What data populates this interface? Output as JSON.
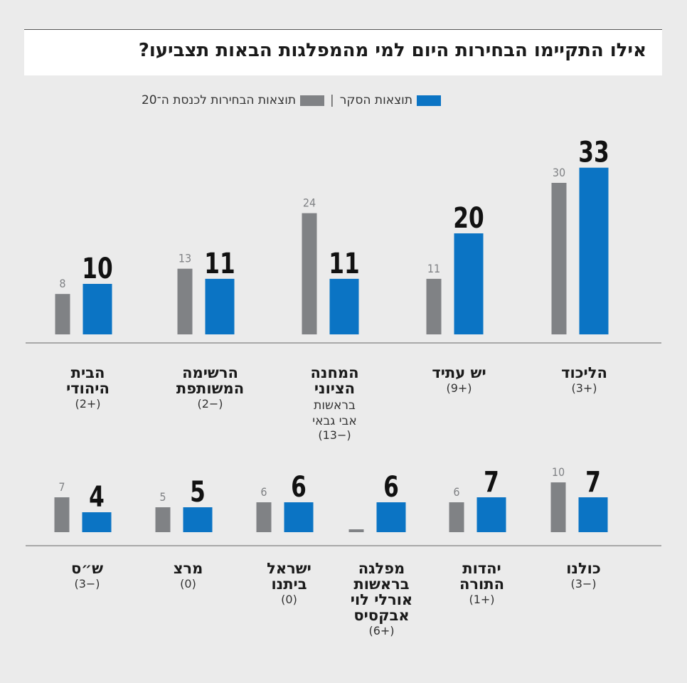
{
  "title": "אילו התקיימו הבחירות היום למי מהמפלגות הבאות תצביעו?",
  "legend": {
    "poll_label": "תוצאות הסקר",
    "separator": "|",
    "election_label": "תוצאות הבחירות לכנסת ה־20"
  },
  "colors": {
    "poll": "#0b74c4",
    "election": "#808285",
    "baseline": "#666666",
    "title_text": "#1a1a1a",
    "value_text": "#111111",
    "election_value_text": "#808285"
  },
  "chart_data": [
    {
      "type": "bar",
      "categories": [
        "הליכוד",
        "יש עתיד",
        "המחנה הציוני",
        "הרשימה המשותפת",
        "הבית היהודי"
      ],
      "category_lines": [
        [
          "הליכוד"
        ],
        [
          "יש עתיד"
        ],
        [
          "המחנה",
          "הציוני"
        ],
        [
          "הרשימה",
          "המשותפת"
        ],
        [
          "הבית",
          "היהודי"
        ]
      ],
      "sublabels": [
        [],
        [],
        [
          "בראשות",
          "אבי גבאי"
        ],
        [],
        []
      ],
      "changes": [
        "(+3)",
        "(+9)",
        "(−13)",
        "(−2)",
        "(+2)"
      ],
      "series": [
        {
          "name": "תוצאות הבחירות לכנסת ה־20",
          "values": [
            30,
            11,
            24,
            13,
            8
          ]
        },
        {
          "name": "תוצאות הסקר",
          "values": [
            33,
            20,
            11,
            11,
            10
          ]
        }
      ]
    },
    {
      "type": "bar",
      "categories": [
        "כולנו",
        "יהדות התורה",
        "מפלגה בראשות אורלי לוי אבקסיס",
        "ישראל ביתנו",
        "מרצ",
        "ש״ס"
      ],
      "category_lines": [
        [
          "כולנו"
        ],
        [
          "יהדות",
          "התורה"
        ],
        [
          "מפלגה",
          "בראשות",
          "אורלי לוי",
          "אבקסיס"
        ],
        [
          "ישראל",
          "ביתנו"
        ],
        [
          "מרצ"
        ],
        [
          "ש״ס"
        ]
      ],
      "sublabels": [
        [],
        [],
        [],
        [],
        [],
        []
      ],
      "changes": [
        "(−3)",
        "(+1)",
        "(+6)",
        "(0)",
        "(0)",
        "(−3)"
      ],
      "series": [
        {
          "name": "תוצאות הבחירות לכנסת ה־20",
          "values": [
            10,
            6,
            0,
            6,
            5,
            7
          ],
          "labels": [
            "10",
            "6",
            "",
            "6",
            "5",
            "7"
          ]
        },
        {
          "name": "תוצאות הסקר",
          "values": [
            7,
            7,
            6,
            6,
            5,
            4
          ]
        }
      ]
    }
  ]
}
